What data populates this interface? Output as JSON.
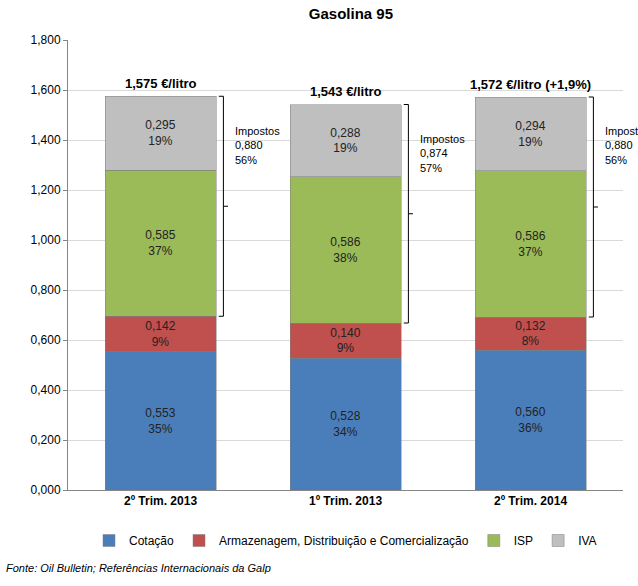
{
  "chart_data": {
    "type": "bar",
    "title": "Gasolina 95",
    "categories": [
      "2º Trim. 2013",
      "1º Trim. 2013",
      "2º Trim. 2014"
    ],
    "stacked": true,
    "data_labels": true,
    "grid": true,
    "legend": "bottom",
    "ylim": [
      0,
      1.8
    ],
    "yticks": [
      {
        "value": 0,
        "label": "0,000"
      },
      {
        "value": 0.2,
        "label": "0,200"
      },
      {
        "value": 0.4,
        "label": "0,400"
      },
      {
        "value": 0.6,
        "label": "0,600"
      },
      {
        "value": 0.8,
        "label": "0,800"
      },
      {
        "value": 1.0,
        "label": "1,000"
      },
      {
        "value": 1.2,
        "label": "1,200"
      },
      {
        "value": 1.4,
        "label": "1,400"
      },
      {
        "value": 1.6,
        "label": "1,600"
      },
      {
        "value": 1.8,
        "label": "1,800"
      }
    ],
    "series": [
      {
        "name": "Cotação",
        "color": "#4a7ebb",
        "values": [
          0.553,
          0.528,
          0.56
        ],
        "value_labels": [
          "0,553",
          "0,528",
          "0,560"
        ],
        "share_labels": [
          "35%",
          "34%",
          "36%"
        ]
      },
      {
        "name": "Armazenagem, Distribuição e Comercialização",
        "color": "#c0504d",
        "values": [
          0.142,
          0.14,
          0.132
        ],
        "value_labels": [
          "0,142",
          "0,140",
          "0,132"
        ],
        "share_labels": [
          "9%",
          "9%",
          "8%"
        ]
      },
      {
        "name": "ISP",
        "color": "#9bbb59",
        "values": [
          0.585,
          0.586,
          0.586
        ],
        "value_labels": [
          "0,585",
          "0,586",
          "0,586"
        ],
        "share_labels": [
          "37%",
          "38%",
          "37%"
        ]
      },
      {
        "name": "IVA",
        "color": "#bfbfbf",
        "values": [
          0.295,
          0.288,
          0.294
        ],
        "value_labels": [
          "0,295",
          "0,288",
          "0,294"
        ],
        "share_labels": [
          "19%",
          "19%",
          "19%"
        ]
      }
    ],
    "totals": [
      1.575,
      1.543,
      1.572
    ],
    "total_labels": [
      "1,575 €/litro",
      "1,543 €/litro",
      "1,572 €/litro (+1,9%)"
    ],
    "taxes": {
      "name": "Impostos",
      "values": [
        0.88,
        0.874,
        0.88
      ],
      "value_labels": [
        "0,880",
        "0,874",
        "0,880"
      ],
      "share_labels": [
        "56%",
        "57%",
        "56%"
      ]
    },
    "source": "Fonte: Oil Bulletin; Referências Internacionais da Galp"
  }
}
